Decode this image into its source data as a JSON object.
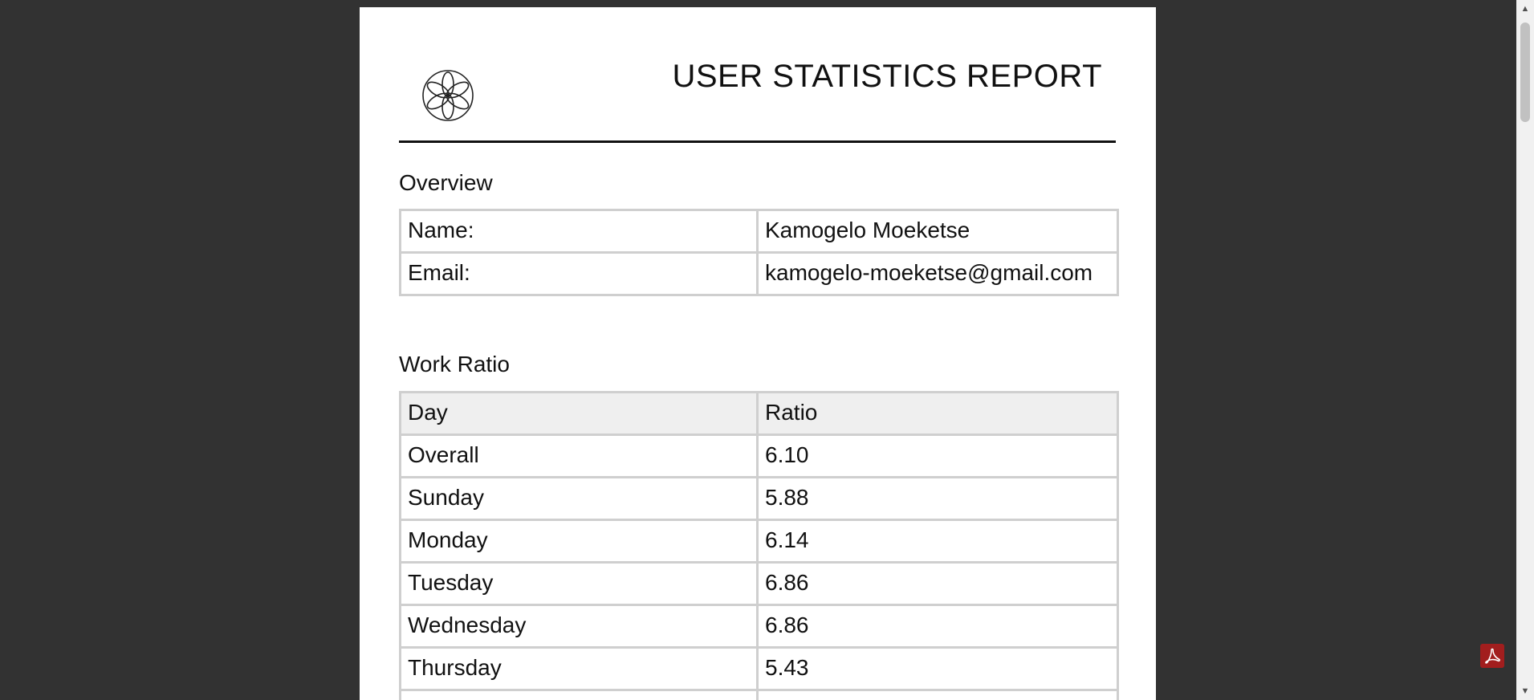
{
  "report": {
    "title": "USER STATISTICS REPORT"
  },
  "overview": {
    "heading": "Overview",
    "rows": [
      {
        "label": "Name:",
        "value": "Kamogelo Moeketse"
      },
      {
        "label": "Email:",
        "value": "kamogelo-moeketse@gmail.com"
      }
    ]
  },
  "work_ratio": {
    "heading": "Work Ratio",
    "columns": [
      "Day",
      "Ratio"
    ],
    "rows": [
      {
        "day": "Overall",
        "ratio": "6.10"
      },
      {
        "day": "Sunday",
        "ratio": "5.88"
      },
      {
        "day": "Monday",
        "ratio": "6.14"
      },
      {
        "day": "Tuesday",
        "ratio": "6.86"
      },
      {
        "day": "Wednesday",
        "ratio": "6.86"
      },
      {
        "day": "Thursday",
        "ratio": "5.43"
      }
    ]
  },
  "icons": {
    "logo": "flower-logo-icon",
    "pdf": "pdf-icon",
    "scroll_up": "scroll-up-arrow-icon",
    "scroll_down": "scroll-down-arrow-icon"
  },
  "colors": {
    "viewer_background": "#323232",
    "page_background": "#ffffff",
    "table_border": "#cfcfcf",
    "header_fill": "#efefef",
    "pdf_badge": "#a21e1e"
  }
}
